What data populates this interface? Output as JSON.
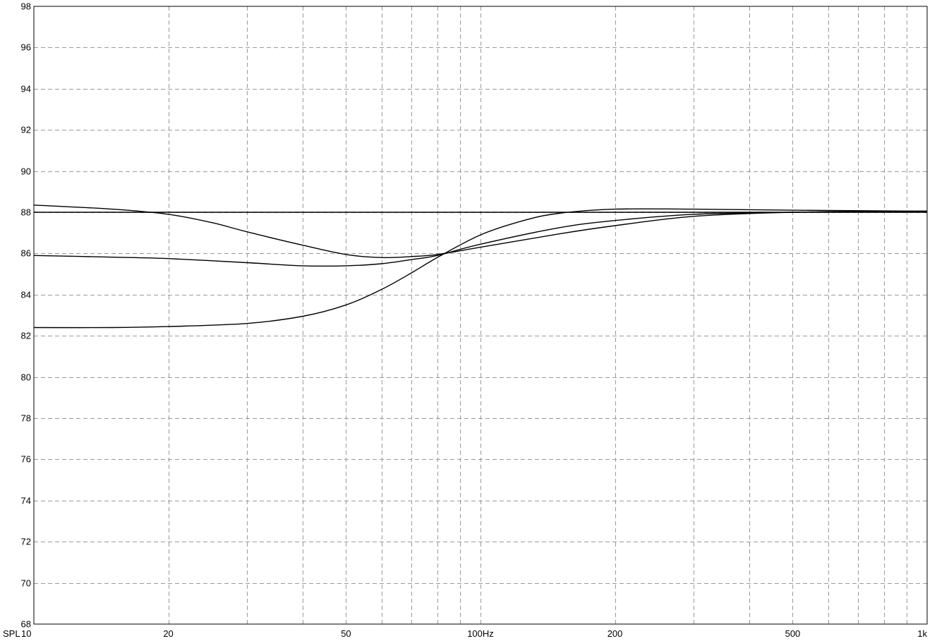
{
  "chart_data": {
    "type": "line",
    "title": "",
    "xlabel": "",
    "ylabel": "",
    "x_scale": "log",
    "xlim": [
      10,
      1000
    ],
    "ylim": [
      68,
      98
    ],
    "grid": true,
    "axis_corner_label": "SPL",
    "y_ticks": [
      68,
      70,
      72,
      74,
      76,
      78,
      80,
      82,
      84,
      86,
      88,
      90,
      92,
      94,
      96,
      98
    ],
    "x_labels": [
      {
        "value": 10,
        "text": "10"
      },
      {
        "value": 20,
        "text": "20"
      },
      {
        "value": 50,
        "text": "50"
      },
      {
        "value": 100,
        "text": "100Hz"
      },
      {
        "value": 200,
        "text": "200"
      },
      {
        "value": 500,
        "text": "500"
      },
      {
        "value": 1000,
        "text": "1k"
      }
    ],
    "x_grid": [
      20,
      30,
      40,
      50,
      60,
      70,
      80,
      90,
      100,
      200,
      300,
      400,
      500,
      600,
      700,
      800,
      900
    ],
    "series": [
      {
        "x": [
          10,
          1000
        ],
        "y": [
          88.0,
          88.0
        ]
      },
      {
        "x": [
          10,
          15,
          20,
          25,
          30,
          40,
          50,
          60,
          70,
          80,
          100,
          150,
          200,
          300,
          500,
          1000
        ],
        "y": [
          88.35,
          88.15,
          87.9,
          87.5,
          87.05,
          86.4,
          85.95,
          85.8,
          85.85,
          85.95,
          86.3,
          86.95,
          87.35,
          87.8,
          88.0,
          88.05
        ]
      },
      {
        "x": [
          10,
          15,
          20,
          30,
          40,
          50,
          60,
          70,
          80,
          100,
          150,
          200,
          300,
          500,
          1000
        ],
        "y": [
          85.9,
          85.82,
          85.75,
          85.55,
          85.4,
          85.4,
          85.5,
          85.7,
          85.9,
          86.45,
          87.25,
          87.6,
          87.9,
          88.0,
          88.05
        ]
      },
      {
        "x": [
          10,
          15,
          20,
          30,
          40,
          50,
          60,
          70,
          80,
          100,
          125,
          150,
          200,
          300,
          500,
          1000
        ],
        "y": [
          82.4,
          82.4,
          82.45,
          82.6,
          82.95,
          83.5,
          84.25,
          85.05,
          85.8,
          86.9,
          87.6,
          87.95,
          88.15,
          88.15,
          88.1,
          88.05
        ]
      }
    ]
  }
}
